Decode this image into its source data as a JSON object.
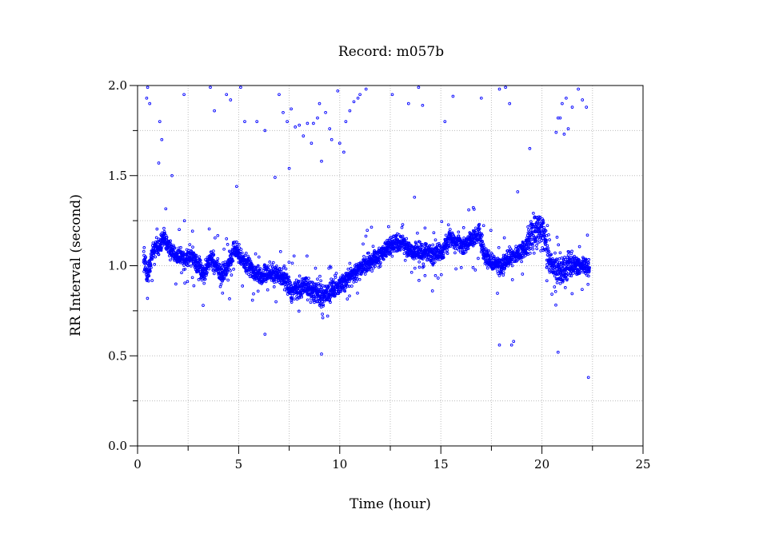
{
  "chart_data": {
    "type": "scatter",
    "title": "Record:  m057b",
    "xlabel": "Time (hour)",
    "ylabel": "RR Interval (second)",
    "xlim": [
      0,
      25
    ],
    "ylim": [
      0.0,
      2.0
    ],
    "xticks": [
      0,
      5,
      10,
      15,
      20,
      25
    ],
    "xtick_labels": [
      "0",
      "5",
      "10",
      "15",
      "20",
      "25"
    ],
    "yticks": [
      0.0,
      0.5,
      1.0,
      1.5,
      2.0
    ],
    "ytick_labels": [
      "0.0",
      "0.5",
      "1.0",
      "1.5",
      "2.0"
    ],
    "grid": true,
    "marker": "open-circle",
    "color": "#0000ff",
    "series": [
      {
        "baseline": [
          [
            0.3,
            1.06
          ],
          [
            0.5,
            0.95
          ],
          [
            0.8,
            1.1
          ],
          [
            1.0,
            1.1
          ],
          [
            1.3,
            1.15
          ],
          [
            1.7,
            1.08
          ],
          [
            2.0,
            1.05
          ],
          [
            2.4,
            1.04
          ],
          [
            2.7,
            1.05
          ],
          [
            3.0,
            1.0
          ],
          [
            3.3,
            0.95
          ],
          [
            3.6,
            1.05
          ],
          [
            3.9,
            1.0
          ],
          [
            4.2,
            0.95
          ],
          [
            4.5,
            1.0
          ],
          [
            4.8,
            1.1
          ],
          [
            5.2,
            1.02
          ],
          [
            5.5,
            1.0
          ],
          [
            5.9,
            0.95
          ],
          [
            6.2,
            0.95
          ],
          [
            6.6,
            0.96
          ],
          [
            7.0,
            0.95
          ],
          [
            7.3,
            0.92
          ],
          [
            7.6,
            0.86
          ],
          [
            8.0,
            0.87
          ],
          [
            8.4,
            0.88
          ],
          [
            8.8,
            0.85
          ],
          [
            9.2,
            0.83
          ],
          [
            9.6,
            0.86
          ],
          [
            10.0,
            0.9
          ],
          [
            10.4,
            0.93
          ],
          [
            10.8,
            0.96
          ],
          [
            11.2,
            1.0
          ],
          [
            11.6,
            1.03
          ],
          [
            12.0,
            1.06
          ],
          [
            12.4,
            1.1
          ],
          [
            12.8,
            1.13
          ],
          [
            13.2,
            1.12
          ],
          [
            13.6,
            1.08
          ],
          [
            14.0,
            1.07
          ],
          [
            14.4,
            1.07
          ],
          [
            14.8,
            1.06
          ],
          [
            15.1,
            1.08
          ],
          [
            15.4,
            1.15
          ],
          [
            15.8,
            1.13
          ],
          [
            16.2,
            1.12
          ],
          [
            16.6,
            1.15
          ],
          [
            16.9,
            1.18
          ],
          [
            17.2,
            1.05
          ],
          [
            17.6,
            1.02
          ],
          [
            18.0,
            1.0
          ],
          [
            18.4,
            1.05
          ],
          [
            18.8,
            1.07
          ],
          [
            19.2,
            1.1
          ],
          [
            19.6,
            1.2
          ],
          [
            20.0,
            1.2
          ],
          [
            20.3,
            1.05
          ],
          [
            20.6,
            0.98
          ],
          [
            21.0,
            0.97
          ],
          [
            21.4,
            1.0
          ],
          [
            21.8,
            1.0
          ],
          [
            22.1,
            1.0
          ],
          [
            22.35,
            0.97
          ]
        ],
        "outliers": [
          [
            0.45,
            1.93
          ],
          [
            0.6,
            1.9
          ],
          [
            0.5,
            1.99
          ],
          [
            1.1,
            1.8
          ],
          [
            1.2,
            1.7
          ],
          [
            1.05,
            1.57
          ],
          [
            1.7,
            1.5
          ],
          [
            2.3,
            1.95
          ],
          [
            3.6,
            1.99
          ],
          [
            3.8,
            1.86
          ],
          [
            4.4,
            1.95
          ],
          [
            4.6,
            1.92
          ],
          [
            5.1,
            1.99
          ],
          [
            5.3,
            1.8
          ],
          [
            5.9,
            1.8
          ],
          [
            6.3,
            1.75
          ],
          [
            7.0,
            1.95
          ],
          [
            7.2,
            1.85
          ],
          [
            7.4,
            1.8
          ],
          [
            7.5,
            1.54
          ],
          [
            7.6,
            1.87
          ],
          [
            7.8,
            1.77
          ],
          [
            8.0,
            1.78
          ],
          [
            8.2,
            1.72
          ],
          [
            8.4,
            1.79
          ],
          [
            8.6,
            1.68
          ],
          [
            8.7,
            1.79
          ],
          [
            8.9,
            1.82
          ],
          [
            9.0,
            1.9
          ],
          [
            9.1,
            1.58
          ],
          [
            9.3,
            1.85
          ],
          [
            9.5,
            1.76
          ],
          [
            9.6,
            1.7
          ],
          [
            9.9,
            1.97
          ],
          [
            10.0,
            1.68
          ],
          [
            10.2,
            1.63
          ],
          [
            10.3,
            1.8
          ],
          [
            10.5,
            1.86
          ],
          [
            10.7,
            1.91
          ],
          [
            10.9,
            1.93
          ],
          [
            11.0,
            1.95
          ],
          [
            11.3,
            1.98
          ],
          [
            12.6,
            1.95
          ],
          [
            13.4,
            1.9
          ],
          [
            13.9,
            1.99
          ],
          [
            14.1,
            1.89
          ],
          [
            15.2,
            1.8
          ],
          [
            15.6,
            1.94
          ],
          [
            17.0,
            1.93
          ],
          [
            17.9,
            1.98
          ],
          [
            18.2,
            1.99
          ],
          [
            18.4,
            1.9
          ],
          [
            19.4,
            1.65
          ],
          [
            20.7,
            1.74
          ],
          [
            20.9,
            1.82
          ],
          [
            21.0,
            1.9
          ],
          [
            21.2,
            1.93
          ],
          [
            21.3,
            1.76
          ],
          [
            21.5,
            1.88
          ],
          [
            21.8,
            1.98
          ],
          [
            22.0,
            1.92
          ],
          [
            22.2,
            1.88
          ],
          [
            21.1,
            1.73
          ],
          [
            20.8,
            1.82
          ],
          [
            6.3,
            0.62
          ],
          [
            9.1,
            0.51
          ],
          [
            18.5,
            0.56
          ],
          [
            18.6,
            0.58
          ],
          [
            20.8,
            0.52
          ],
          [
            22.3,
            0.38
          ],
          [
            17.9,
            0.56
          ],
          [
            6.8,
            1.49
          ],
          [
            4.9,
            1.44
          ],
          [
            13.7,
            1.38
          ],
          [
            18.8,
            1.41
          ]
        ]
      }
    ]
  }
}
